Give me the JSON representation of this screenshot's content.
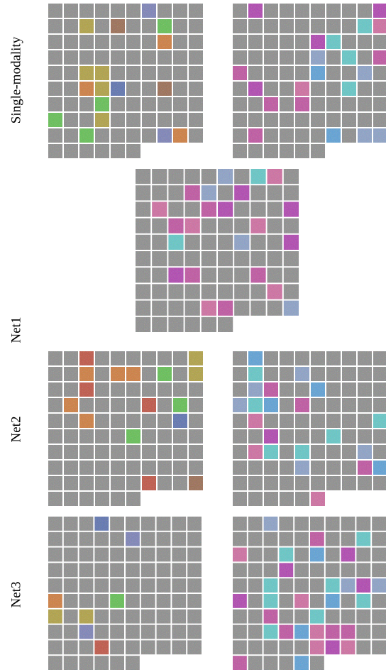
{
  "row_labels": [
    "Single-modality",
    "Net1",
    "Net2",
    "Net3"
  ]
}
